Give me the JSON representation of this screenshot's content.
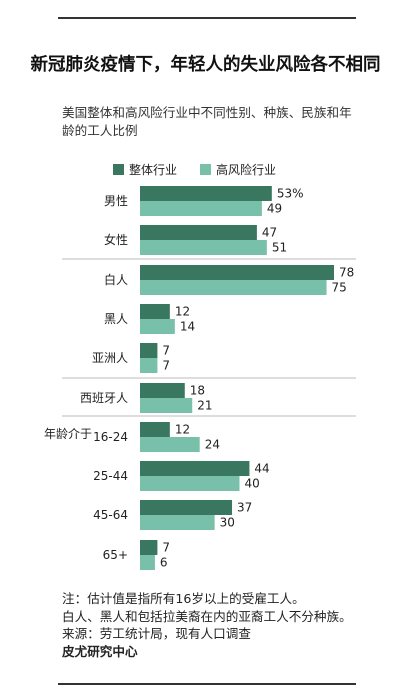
{
  "title": "新冠肺炎疫情下，年轻人的失业风险各不相同",
  "subtitle": "美国整体和高风险行业中不同性别、种族、民族和年龄的工人比例",
  "notes": [
    "注：估计值是指所有16岁以上的受雇工人。",
    "白人、黑人和包括拉美裔在内的亚裔工人不分种族。",
    "来源：劳工统计局，现有人口调查"
  ],
  "source_org": "皮尤研究中心",
  "chart_data": {
    "type": "bar",
    "orientation": "horizontal",
    "categories": [
      "男性",
      "女性",
      "白人",
      "黑人",
      "亚洲人",
      "西班牙人",
      "16-24",
      "25-44",
      "45-64",
      "65+"
    ],
    "group_label": "年龄介于",
    "series": [
      {
        "name": "整体行业",
        "values": [
          53,
          47,
          78,
          12,
          7,
          18,
          12,
          44,
          37,
          7
        ],
        "color": "#3a7761"
      },
      {
        "name": "高风险行业",
        "values": [
          49,
          51,
          75,
          14,
          7,
          21,
          24,
          40,
          30,
          6
        ],
        "color": "#78c0aa"
      }
    ],
    "value_labels": [
      [
        "53%",
        "47",
        "78",
        "12",
        "7",
        "18",
        "12",
        "44",
        "37",
        "7"
      ],
      [
        "49",
        "51",
        "75",
        "14",
        "7",
        "21",
        "24",
        "40",
        "30",
        "6"
      ]
    ],
    "xlim": [
      0,
      78
    ],
    "legend_position": "top",
    "grid": false
  }
}
